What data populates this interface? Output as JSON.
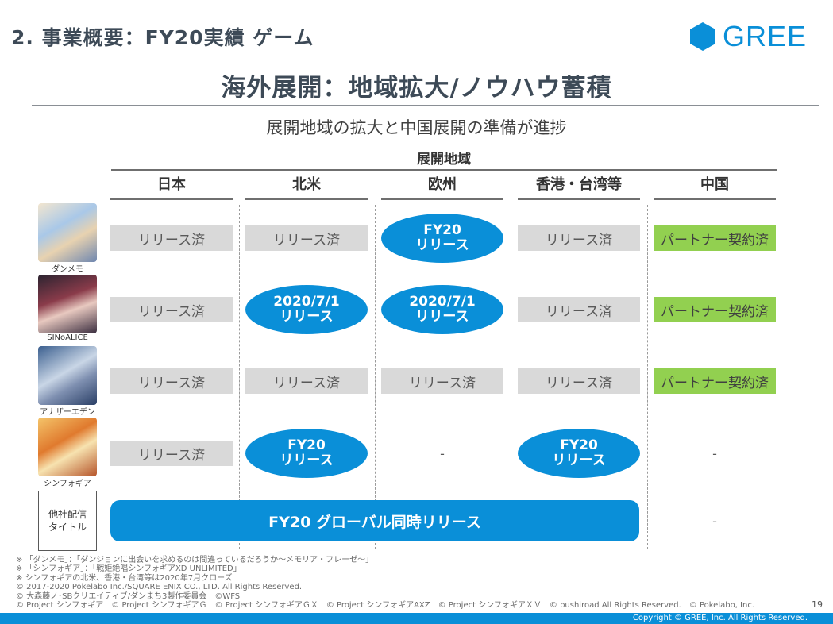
{
  "header": {
    "section_title": "2. 事業概要：FY20実績 ゲーム",
    "logo_text": "GREE"
  },
  "main_title": "海外展開：地域拡大/ノウハウ蓄積",
  "subtitle": "展開地域の拡大と中国展開の準備が進捗",
  "table": {
    "region_header": "展開地域",
    "columns": [
      "日本",
      "北米",
      "欧州",
      "香港・台湾等",
      "中国"
    ],
    "rows": [
      {
        "game": "ダンメモ",
        "cells": [
          {
            "type": "grey",
            "lines": [
              "リリース済"
            ]
          },
          {
            "type": "grey",
            "lines": [
              "リリース済"
            ]
          },
          {
            "type": "blue",
            "lines": [
              "FY20",
              "リリース"
            ]
          },
          {
            "type": "grey",
            "lines": [
              "リリース済"
            ]
          },
          {
            "type": "green",
            "lines": [
              "パートナー契約済"
            ]
          }
        ]
      },
      {
        "game": "SINoALICE",
        "cells": [
          {
            "type": "grey",
            "lines": [
              "リリース済"
            ]
          },
          {
            "type": "blue",
            "lines": [
              "2020/7/1",
              "リリース"
            ]
          },
          {
            "type": "blue",
            "lines": [
              "2020/7/1",
              "リリース"
            ]
          },
          {
            "type": "grey",
            "lines": [
              "リリース済"
            ]
          },
          {
            "type": "green",
            "lines": [
              "パートナー契約済"
            ]
          }
        ]
      },
      {
        "game": "アナザーエデン",
        "cells": [
          {
            "type": "grey",
            "lines": [
              "リリース済"
            ]
          },
          {
            "type": "grey",
            "lines": [
              "リリース済"
            ]
          },
          {
            "type": "grey",
            "lines": [
              "リリース済"
            ]
          },
          {
            "type": "grey",
            "lines": [
              "リリース済"
            ]
          },
          {
            "type": "green",
            "lines": [
              "パートナー契約済"
            ]
          }
        ]
      },
      {
        "game": "シンフォギア",
        "cells": [
          {
            "type": "grey",
            "lines": [
              "リリース済"
            ]
          },
          {
            "type": "blue",
            "lines": [
              "FY20",
              "リリース"
            ]
          },
          {
            "type": "dash",
            "lines": [
              "-"
            ]
          },
          {
            "type": "blue",
            "lines": [
              "FY20",
              "リリース"
            ]
          },
          {
            "type": "dash",
            "lines": [
              "-"
            ]
          }
        ]
      }
    ],
    "other_titles": {
      "label_lines": [
        "他社配信",
        "タイトル"
      ],
      "global_release": "FY20 グローバル同時リリース",
      "china_cell": "-"
    }
  },
  "notes": [
    "※ 「ダンメモ」：「ダンジョンに出会いを求めるのは間違っているだろうか～メモリア・フレーゼ～」",
    "※ 「シンフォギア」：「戦姫絶唱シンフォギアXD UNLIMITED」",
    "※ シンフォギアの北米、香港・台湾等は2020年7月クローズ",
    "© 2017-2020 Pokelabo Inc./SQUARE ENIX CO., LTD. All Rights Reserved.",
    "© 大森藤ノ･SBクリエイティブ/ダンまち3製作委員会　©WFS",
    "© Project シンフォギア　© Project シンフォギアＧ　© Project シンフォギアＧＸ　© Project シンフォギアAXZ　© Project シンフォギアＸＶ　© bushiroad All Rights Reserved.　© Pokelabo, Inc."
  ],
  "page_number": "19",
  "footer_copyright": "Copyright © GREE, Inc. All Rights Reserved.",
  "colors": {
    "brand_blue": "#0a8fd8",
    "released_grey": "#d9d9d9",
    "partner_green": "#92d050"
  }
}
